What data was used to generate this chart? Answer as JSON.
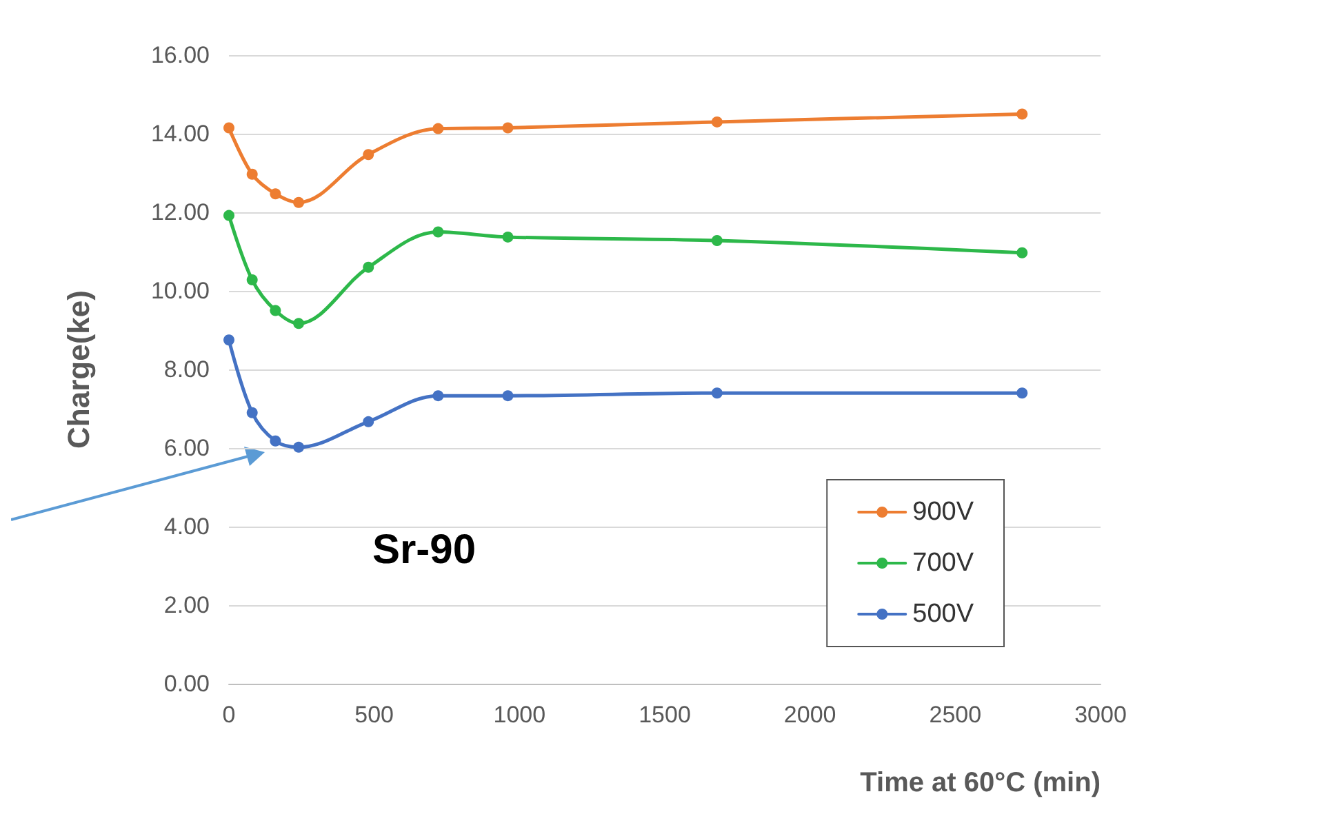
{
  "chart_data": {
    "type": "line",
    "xlabel": "Time at 60°C (min)",
    "ylabel": "Charge(ke)",
    "x": [
      0,
      80,
      160,
      240,
      480,
      720,
      960,
      1680,
      2730
    ],
    "series": [
      {
        "name": "900V",
        "color": "#ed7d31",
        "values": [
          14.15,
          12.97,
          12.47,
          12.25,
          13.47,
          14.13,
          14.15,
          14.3,
          14.5
        ]
      },
      {
        "name": "700V",
        "color": "#2db84a",
        "values": [
          11.92,
          10.28,
          9.5,
          9.17,
          10.6,
          11.5,
          11.37,
          11.28,
          10.97
        ]
      },
      {
        "name": "500V",
        "color": "#4472c4",
        "values": [
          8.75,
          6.9,
          6.18,
          6.02,
          6.67,
          7.33,
          7.33,
          7.4,
          7.4
        ]
      }
    ],
    "xlim": [
      0,
      3000
    ],
    "xticks": [
      0,
      500,
      1000,
      1500,
      2000,
      2500,
      3000
    ],
    "ylim": [
      0,
      16
    ],
    "yticks": [
      {
        "value": 0,
        "label": "0.00"
      },
      {
        "value": 2,
        "label": "2.00"
      },
      {
        "value": 4,
        "label": "4.00"
      },
      {
        "value": 6,
        "label": "6.00"
      },
      {
        "value": 8,
        "label": "8.00"
      },
      {
        "value": 10,
        "label": "10.00"
      },
      {
        "value": 12,
        "label": "12.00"
      },
      {
        "value": 14,
        "label": "14.00"
      },
      {
        "value": 16,
        "label": "16.00"
      }
    ],
    "annotations": [
      "Sr-90"
    ],
    "grid": "y",
    "legend": "bottom right",
    "marker": "circle",
    "line_style": "solid"
  }
}
